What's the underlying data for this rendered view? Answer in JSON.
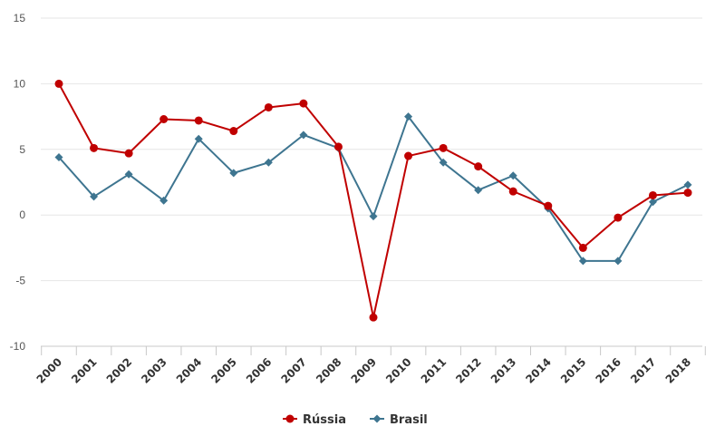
{
  "chart_data": {
    "type": "line",
    "title": "",
    "xlabel": "",
    "ylabel": "",
    "categories": [
      "2000",
      "2001",
      "2002",
      "2003",
      "2004",
      "2005",
      "2006",
      "2007",
      "2008",
      "2009",
      "2010",
      "2011",
      "2012",
      "2013",
      "2014",
      "2015",
      "2016",
      "2017",
      "2018"
    ],
    "ylim": [
      -10,
      15
    ],
    "yticks": [
      -10,
      -5,
      0,
      5,
      10,
      15
    ],
    "grid": true,
    "legend_position": "bottom-center",
    "series": [
      {
        "name": "Rússia",
        "color": "#c00000",
        "marker": "circle",
        "values": [
          10.0,
          5.1,
          4.7,
          7.3,
          7.2,
          6.4,
          8.2,
          8.5,
          5.2,
          -7.8,
          4.5,
          5.1,
          3.7,
          1.8,
          0.7,
          -2.5,
          -0.2,
          1.5,
          1.7
        ]
      },
      {
        "name": "Brasil",
        "color": "#3e7590",
        "marker": "diamond",
        "values": [
          4.4,
          1.4,
          3.1,
          1.1,
          5.8,
          3.2,
          4.0,
          6.1,
          5.1,
          -0.1,
          7.5,
          4.0,
          1.9,
          3.0,
          0.5,
          -3.5,
          -3.5,
          1.0,
          2.3
        ]
      }
    ]
  }
}
